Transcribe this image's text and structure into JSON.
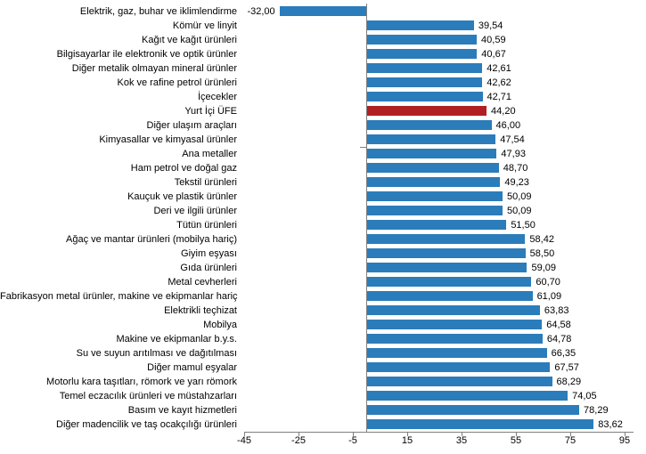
{
  "chart_data": {
    "type": "bar",
    "orientation": "horizontal",
    "title": "",
    "xlabel": "",
    "ylabel": "",
    "grid": false,
    "legend": null,
    "xlim": [
      -45,
      95
    ],
    "xticks": [
      -45,
      -25,
      -5,
      15,
      35,
      55,
      75,
      95
    ],
    "xtick_labels": [
      "-45",
      "-25",
      "-5",
      "15",
      "35",
      "55",
      "75",
      "95"
    ],
    "categories": [
      "Elektrik, gaz, buhar ve iklimlendirme",
      "Kömür ve linyit",
      "Kağıt ve kağıt ürünleri",
      "Bilgisayarlar ile elektronik ve optik ürünler",
      "Diğer metalik olmayan mineral ürünler",
      "Kok ve rafine petrol ürünleri",
      "İçecekler",
      "Yurt İçi ÜFE",
      "Diğer ulaşım araçları",
      "Kimyasallar ve kimyasal ürünler",
      "Ana metaller",
      "Ham petrol ve doğal gaz",
      "Tekstil ürünleri",
      "Kauçuk ve plastik ürünler",
      "Deri ve ilgili ürünler",
      "Tütün ürünleri",
      "Ağaç ve mantar ürünleri (mobilya hariç)",
      "Giyim eşyası",
      "Gıda ürünleri",
      "Metal cevherleri",
      "Fabrikasyon metal ürünler, makine ve ekipmanlar hariç",
      "Elektrikli teçhizat",
      "Mobilya",
      "Makine ve ekipmanlar b.y.s.",
      "Su ve suyun arıtılması ve dağıtılması",
      "Diğer mamul eşyalar",
      "Motorlu kara taşıtları, römork ve yarı römork",
      "Temel eczacılık ürünleri ve müstahzarları",
      "Basım ve kayıt hizmetleri",
      "Diğer madencilik ve taş ocakçılığı ürünleri"
    ],
    "values": [
      -32.0,
      39.54,
      40.59,
      40.67,
      42.61,
      42.62,
      42.71,
      44.2,
      46.0,
      47.54,
      47.93,
      48.7,
      49.23,
      50.09,
      50.09,
      51.5,
      58.42,
      58.5,
      59.09,
      60.7,
      61.09,
      63.83,
      64.58,
      64.78,
      66.35,
      67.57,
      68.29,
      74.05,
      78.29,
      83.62
    ],
    "value_labels": [
      "-32,00",
      "39,54",
      "40,59",
      "40,67",
      "42,61",
      "42,62",
      "42,71",
      "44,20",
      "46,00",
      "47,54",
      "47,93",
      "48,70",
      "49,23",
      "50,09",
      "50,09",
      "51,50",
      "58,42",
      "58,50",
      "59,09",
      "60,70",
      "61,09",
      "63,83",
      "64,58",
      "64,78",
      "66,35",
      "67,57",
      "68,29",
      "74,05",
      "78,29",
      "83,62"
    ],
    "highlight_category": "Yurt İçi ÜFE",
    "highlight_index": 7,
    "colors": {
      "bar": "#2B7CBA",
      "highlight": "#B02023",
      "axis": "#808080",
      "text": "#000000",
      "background": "#FFFFFF"
    }
  }
}
